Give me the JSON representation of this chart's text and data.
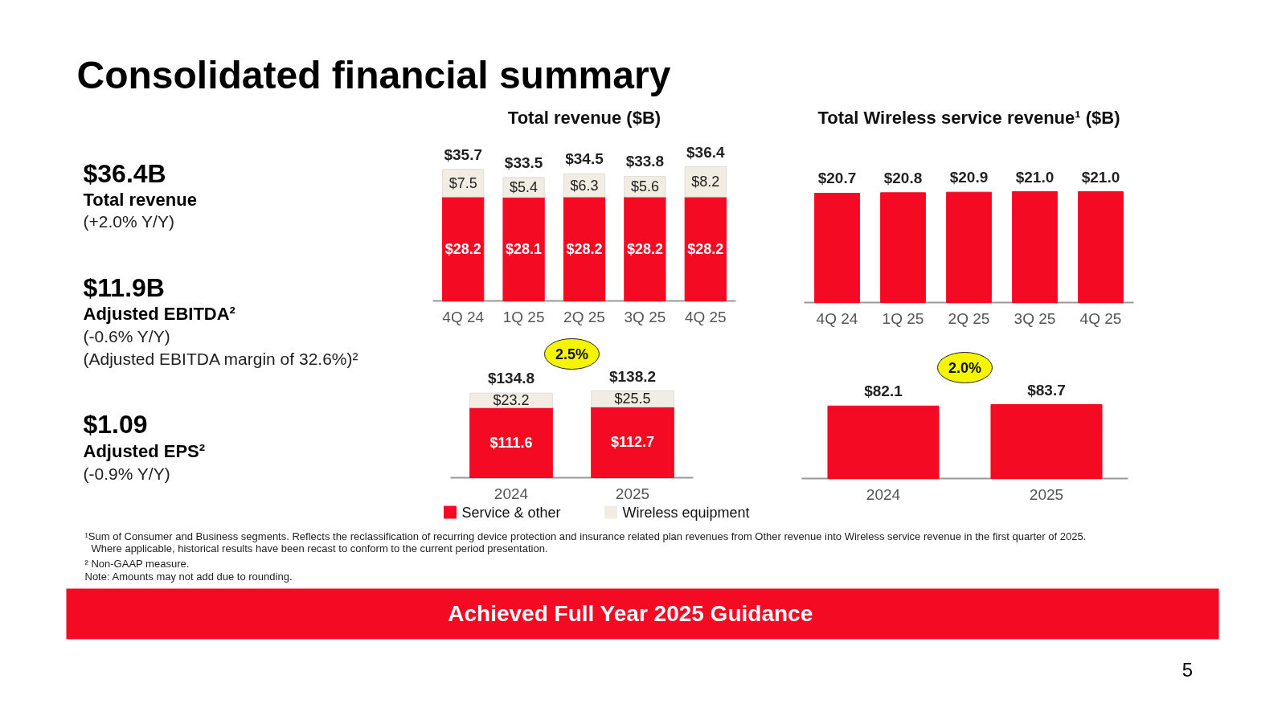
{
  "chart_data": [
    {
      "type": "other",
      "title": "Consolidated financial summary",
      "annotations": [
        "$36.4B",
        "Total revenue",
        "(+2.0% Y/Y)",
        "$11.9B",
        "Adjusted EBITDA²",
        "(-0.6% Y/Y)",
        "(Adjusted EBITDA margin of 32.6%)²",
        "$1.09",
        "Adjusted EPS²",
        "(-0.9% Y/Y)"
      ]
    },
    {
      "type": "bar",
      "stacked": true,
      "title": "Total revenue ($B)",
      "categories": [
        "4Q 24",
        "1Q 25",
        "2Q 25",
        "3Q 25",
        "4Q 25"
      ],
      "series": [
        {
          "color": "#f50a23",
          "values": [
            28.2,
            28.1,
            28.2,
            28.2,
            28.2
          ],
          "value_labels": [
            "$28.2",
            "$28.1",
            "$28.2",
            "$28.2",
            "$28.2"
          ]
        },
        {
          "color": "#f2ede3",
          "values": [
            7.5,
            5.4,
            6.3,
            5.6,
            8.2
          ],
          "value_labels": [
            "$7.5",
            "$5.4",
            "$6.3",
            "$5.6",
            "$8.2"
          ]
        }
      ],
      "totals": [
        "$35.7",
        "$33.5",
        "$34.5",
        "$33.8",
        "$36.4"
      ]
    },
    {
      "type": "bar",
      "title": "Total Wireless service revenue¹ ($B)",
      "categories": [
        "4Q 24",
        "1Q 25",
        "2Q 25",
        "3Q 25",
        "4Q 25"
      ],
      "series": [
        {
          "color": "#f50a23",
          "values": [
            20.7,
            20.8,
            20.9,
            21.0,
            21.0
          ],
          "value_labels": [
            "$20.7",
            "$20.8",
            "$20.9",
            "$21.0",
            "$21.0"
          ]
        }
      ]
    },
    {
      "type": "bar",
      "stacked": true,
      "categories": [
        "2024",
        "2025"
      ],
      "legend": "bottom",
      "series": [
        {
          "name": "Service & other",
          "color": "#f50a23",
          "values": [
            111.6,
            112.7
          ],
          "value_labels": [
            "$111.6",
            "$112.7"
          ]
        },
        {
          "name": "Wireless equipment",
          "color": "#f2ede3",
          "values": [
            23.2,
            25.5
          ],
          "value_labels": [
            "$23.2",
            "$25.5"
          ]
        }
      ],
      "totals": [
        "$134.8",
        "$138.2"
      ],
      "annotations": [
        "2.5%"
      ]
    },
    {
      "type": "bar",
      "categories": [
        "2024",
        "2025"
      ],
      "series": [
        {
          "color": "#f50a23",
          "values": [
            82.1,
            83.7
          ],
          "value_labels": [
            "$82.1",
            "$83.7"
          ]
        }
      ],
      "annotations": [
        "2.0%"
      ]
    },
    {
      "type": "other",
      "annotations": [
        "¹Sum of Consumer and Business segments. Reflects the reclassification of recurring device protection and insurance related plan revenues from Other revenue into Wireless service revenue in the first quarter of 2025.",
        "Where applicable, historical results have been recast to conform to the current period presentation.",
        "² Non-GAAP measure.",
        "Note: Amounts may not add due to rounding.",
        "Achieved Full Year 2025 Guidance",
        "5"
      ]
    }
  ]
}
